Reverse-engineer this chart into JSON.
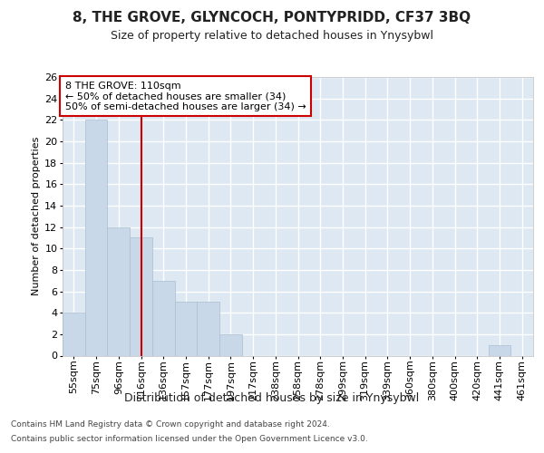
{
  "title1": "8, THE GROVE, GLYNCOCH, PONTYPRIDD, CF37 3BQ",
  "title2": "Size of property relative to detached houses in Ynysybwl",
  "xlabel": "Distribution of detached houses by size in Ynysybwl",
  "ylabel": "Number of detached properties",
  "categories": [
    "55sqm",
    "75sqm",
    "96sqm",
    "116sqm",
    "136sqm",
    "157sqm",
    "177sqm",
    "197sqm",
    "217sqm",
    "238sqm",
    "258sqm",
    "278sqm",
    "299sqm",
    "319sqm",
    "339sqm",
    "360sqm",
    "380sqm",
    "400sqm",
    "420sqm",
    "441sqm",
    "461sqm"
  ],
  "values": [
    4,
    22,
    12,
    11,
    7,
    5,
    5,
    2,
    0,
    0,
    0,
    0,
    0,
    0,
    0,
    0,
    0,
    0,
    0,
    1,
    0
  ],
  "bar_color": "#c8d8e8",
  "bar_edge_color": "#a8bece",
  "vline_x_index": 3,
  "vline_color": "#cc0000",
  "ylim_max": 26,
  "yticks": [
    0,
    2,
    4,
    6,
    8,
    10,
    12,
    14,
    16,
    18,
    20,
    22,
    24,
    26
  ],
  "annotation_line1": "8 THE GROVE: 110sqm",
  "annotation_line2": "← 50% of detached houses are smaller (34)",
  "annotation_line3": "50% of semi-detached houses are larger (34) →",
  "annotation_box_facecolor": "#ffffff",
  "annotation_box_edgecolor": "#cc0000",
  "bg_color": "#dde8f2",
  "grid_color": "#ffffff",
  "title1_fontsize": 11,
  "title2_fontsize": 9,
  "xlabel_fontsize": 9,
  "ylabel_fontsize": 8,
  "tick_fontsize": 8,
  "annotation_fontsize": 8,
  "footer_fontsize": 6.5,
  "footer_line1": "Contains HM Land Registry data © Crown copyright and database right 2024.",
  "footer_line2": "Contains public sector information licensed under the Open Government Licence v3.0."
}
